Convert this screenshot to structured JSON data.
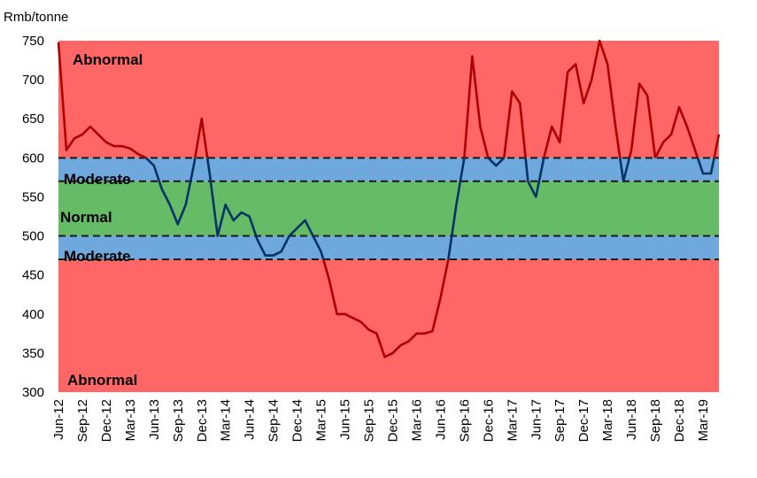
{
  "chart_data": {
    "type": "line",
    "ylabel": "Rmb/tonne",
    "ylim": [
      300,
      750
    ],
    "y_ticks": [
      "300",
      "350",
      "400",
      "450",
      "500",
      "550",
      "600",
      "650",
      "700",
      "750"
    ],
    "categories": [
      "Jun-12",
      "Sep-12",
      "Dec-12",
      "Mar-13",
      "Jun-13",
      "Sep-13",
      "Dec-13",
      "Mar-14",
      "Jun-14",
      "Sep-14",
      "Dec-14",
      "Mar-15",
      "Jun-15",
      "Sep-15",
      "Dec-15",
      "Mar-16",
      "Jun-16",
      "Sep-16",
      "Dec-16",
      "Mar-17",
      "Jun-17",
      "Sep-17",
      "Dec-17",
      "Mar-18",
      "Jun-18",
      "Sep-18",
      "Dec-18",
      "Mar-19"
    ],
    "x_start": "2012-06",
    "x_end": "2019-05",
    "bands": [
      {
        "label": "Abnormal",
        "from": 600,
        "to": 750,
        "color": "#ff6666"
      },
      {
        "label": "Moderate",
        "from": 570,
        "to": 600,
        "color": "#6fa8dc"
      },
      {
        "label": "Normal",
        "from": 500,
        "to": 570,
        "color": "#66bb66"
      },
      {
        "label": "Moderate",
        "from": 470,
        "to": 500,
        "color": "#6fa8dc"
      },
      {
        "label": "Abnormal",
        "from": 300,
        "to": 470,
        "color": "#ff6666"
      }
    ],
    "thresholds": [
      600,
      570,
      500,
      470
    ],
    "series": [
      {
        "x": [
          "2012-06",
          "2012-07",
          "2012-08",
          "2012-09",
          "2012-10",
          "2012-11",
          "2012-12",
          "2013-01",
          "2013-02",
          "2013-03",
          "2013-04",
          "2013-05",
          "2013-06",
          "2013-07",
          "2013-08",
          "2013-09",
          "2013-10",
          "2013-11",
          "2013-12",
          "2014-01",
          "2014-02",
          "2014-03",
          "2014-04",
          "2014-05",
          "2014-06",
          "2014-07",
          "2014-08",
          "2014-09",
          "2014-10",
          "2014-11",
          "2014-12",
          "2015-01",
          "2015-02",
          "2015-03",
          "2015-04",
          "2015-05",
          "2015-06",
          "2015-07",
          "2015-08",
          "2015-09",
          "2015-10",
          "2015-11",
          "2015-12",
          "2016-01",
          "2016-02",
          "2016-03",
          "2016-04",
          "2016-05",
          "2016-06",
          "2016-07",
          "2016-08",
          "2016-09",
          "2016-10",
          "2016-11",
          "2016-12",
          "2017-01",
          "2017-02",
          "2017-03",
          "2017-04",
          "2017-05",
          "2017-06",
          "2017-07",
          "2017-08",
          "2017-09",
          "2017-10",
          "2017-11",
          "2017-12",
          "2018-01",
          "2018-02",
          "2018-03",
          "2018-04",
          "2018-05",
          "2018-06",
          "2018-07",
          "2018-08",
          "2018-09",
          "2018-10",
          "2018-11",
          "2018-12",
          "2019-01",
          "2019-02",
          "2019-03",
          "2019-04",
          "2019-05"
        ],
        "values": [
          748,
          610,
          625,
          630,
          640,
          630,
          620,
          615,
          615,
          612,
          605,
          600,
          590,
          560,
          540,
          515,
          540,
          590,
          650,
          580,
          500,
          540,
          520,
          530,
          525,
          495,
          475,
          475,
          480,
          500,
          510,
          520,
          500,
          480,
          445,
          400,
          400,
          395,
          390,
          380,
          375,
          345,
          350,
          360,
          365,
          375,
          375,
          378,
          420,
          470,
          540,
          600,
          730,
          640,
          600,
          590,
          600,
          685,
          670,
          570,
          550,
          600,
          640,
          620,
          710,
          720,
          670,
          700,
          750,
          720,
          640,
          570,
          610,
          695,
          680,
          600,
          620,
          630,
          665,
          640,
          610,
          580,
          580,
          630
        ]
      }
    ]
  }
}
